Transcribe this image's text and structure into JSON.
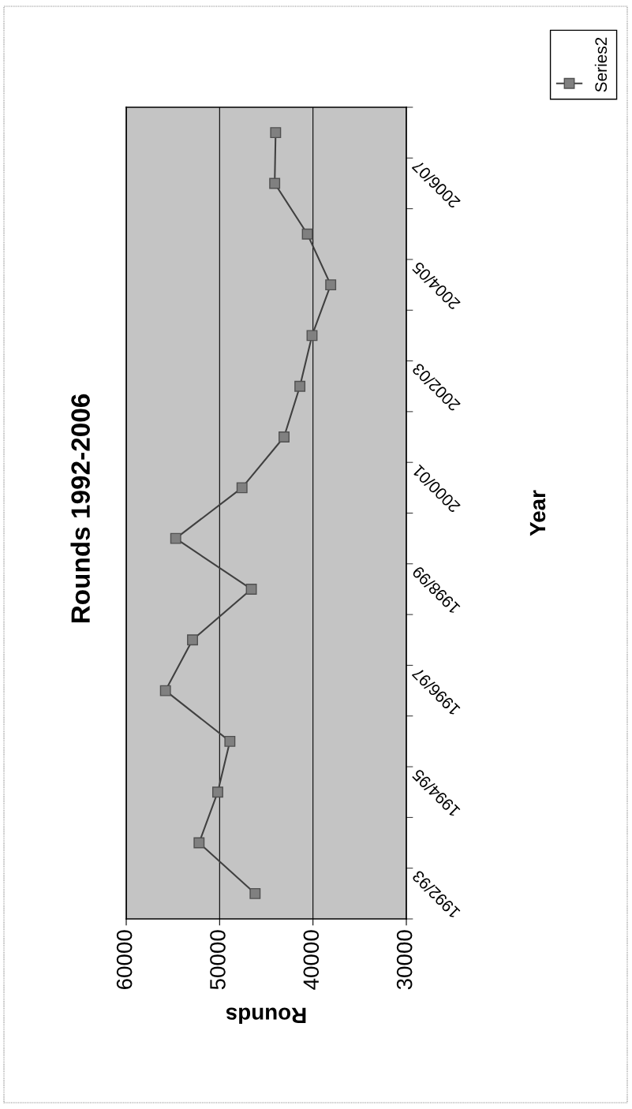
{
  "chart_data": {
    "type": "line",
    "title": "Rounds 1992-2006",
    "xlabel": "Rounds",
    "ylabel": "Year",
    "categories": [
      null,
      "2006/07",
      null,
      "2004/05",
      null,
      "2002/03",
      null,
      "2000/01",
      null,
      "1998/99",
      null,
      "1996/97",
      null,
      "1994/95",
      null,
      "1992/93"
    ],
    "series": [
      {
        "name": "Series2",
        "color": "#404040",
        "values": [
          44000,
          44100,
          40600,
          38100,
          40100,
          41400,
          43100,
          47600,
          54700,
          46600,
          52900,
          55800,
          48900,
          50200,
          52200,
          46200
        ]
      }
    ],
    "orientation": "horizontal",
    "xlim": [
      60000,
      30000
    ],
    "xticks": [
      60000,
      50000,
      40000,
      30000
    ],
    "grid": "x",
    "legend": "top right",
    "marker": "square",
    "line_style": "solid"
  }
}
